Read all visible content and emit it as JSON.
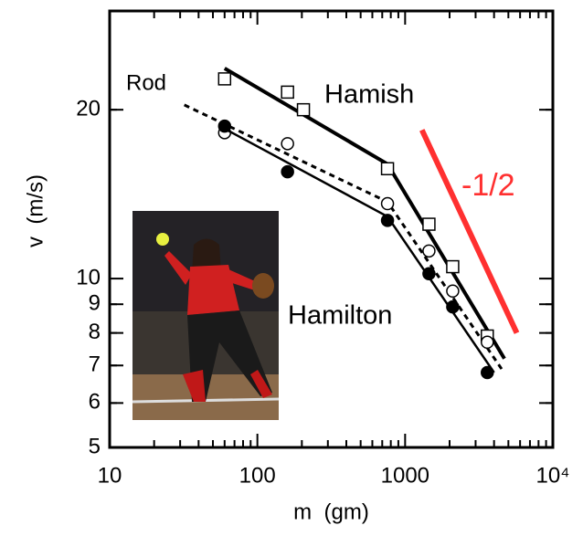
{
  "chart_data": {
    "type": "scatter",
    "xlabel": "m  (gm)",
    "ylabel": "v  (m/s)",
    "xscale": "log",
    "yscale": "log",
    "xlim": [
      10,
      10000
    ],
    "ylim": [
      5,
      30
    ],
    "xticks": [
      10,
      100,
      1000,
      {
        "value": 10000,
        "label": "10⁴"
      }
    ],
    "yticks": [
      5,
      6,
      7,
      8,
      9,
      10,
      20
    ],
    "series": [
      {
        "name": "Hamish",
        "marker": "open-square",
        "color": "#000000",
        "x": [
          60,
          160,
          205,
          760,
          1450,
          2100,
          3600
        ],
        "values": [
          22.7,
          21.5,
          20,
          15.7,
          12.5,
          10.5,
          7.9
        ],
        "line": {
          "dash": false,
          "width": 4,
          "x": [
            60,
            760,
            4700
          ],
          "values": [
            23.7,
            16.0,
            7.2
          ]
        }
      },
      {
        "name": "Rod",
        "marker": "open-circle",
        "color": "#000000",
        "x": [
          60,
          160,
          760,
          1450,
          2100,
          3600
        ],
        "values": [
          18.2,
          17.4,
          13.6,
          11.2,
          9.5,
          7.7
        ],
        "line": {
          "dash": true,
          "width": 3,
          "x": [
            32,
            760,
            4500
          ],
          "values": [
            20.4,
            13.7,
            6.9
          ]
        }
      },
      {
        "name": "Hamilton",
        "marker": "filled-circle",
        "color": "#000000",
        "x": [
          60,
          160,
          760,
          1450,
          2100,
          3600
        ],
        "values": [
          18.7,
          15.5,
          12.7,
          10.2,
          8.9,
          6.8
        ],
        "line": {
          "dash": false,
          "width": 2.5,
          "x": [
            60,
            760,
            4000
          ],
          "values": [
            18.5,
            12.9,
            6.8
          ]
        }
      }
    ],
    "annotations": [
      {
        "text": "-1/2",
        "color": "#ff3030",
        "x": [
          1300,
          5700
        ],
        "values": [
          18.4,
          8.0
        ]
      }
    ]
  }
}
